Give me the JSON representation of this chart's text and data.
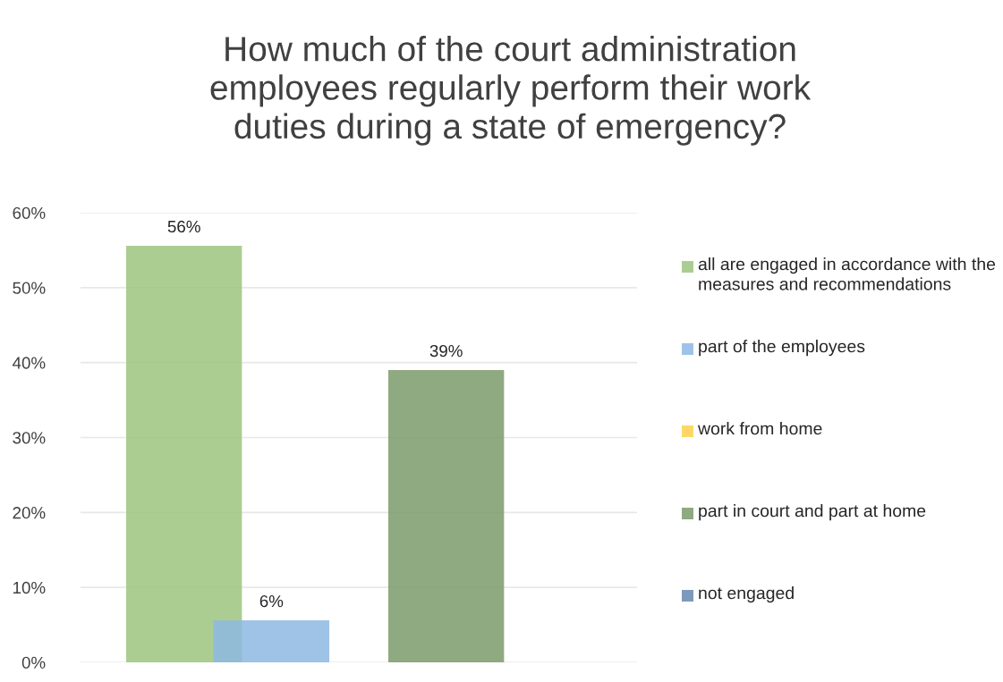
{
  "chart_data": {
    "type": "bar",
    "title": "How much of the court administration\nemployees regularly perform their work\nduties during a state of emergency?",
    "categories": [
      null
    ],
    "series": [
      {
        "name": "all are engaged in accordance with the measures and recommendations",
        "color": "#9dc47f",
        "values": [
          55.6
        ],
        "value_labels": [
          "56%"
        ]
      },
      {
        "name": "part of the employees",
        "color": "#8db8e2",
        "values": [
          5.6
        ],
        "value_labels": [
          "6%"
        ]
      },
      {
        "name": "work from home",
        "color": "#ffd04b",
        "values": [
          null
        ],
        "value_labels": [
          null
        ]
      },
      {
        "name": "part in court and part at home",
        "color": "#7b9a6b",
        "values": [
          39.0
        ],
        "value_labels": [
          "39%"
        ]
      },
      {
        "name": "not engaged",
        "color": "#6688b0",
        "values": [
          null
        ],
        "value_labels": [
          null
        ]
      }
    ],
    "ylim": [
      0,
      60
    ],
    "yticks": [
      {
        "value": 0,
        "label": "0%"
      },
      {
        "value": 10,
        "label": "10%"
      },
      {
        "value": 20,
        "label": "20%"
      },
      {
        "value": 30,
        "label": "30%"
      },
      {
        "value": 40,
        "label": "40%"
      },
      {
        "value": 50,
        "label": "50%"
      },
      {
        "value": 60,
        "label": "60%"
      }
    ],
    "grid": "y",
    "legend": "right"
  }
}
